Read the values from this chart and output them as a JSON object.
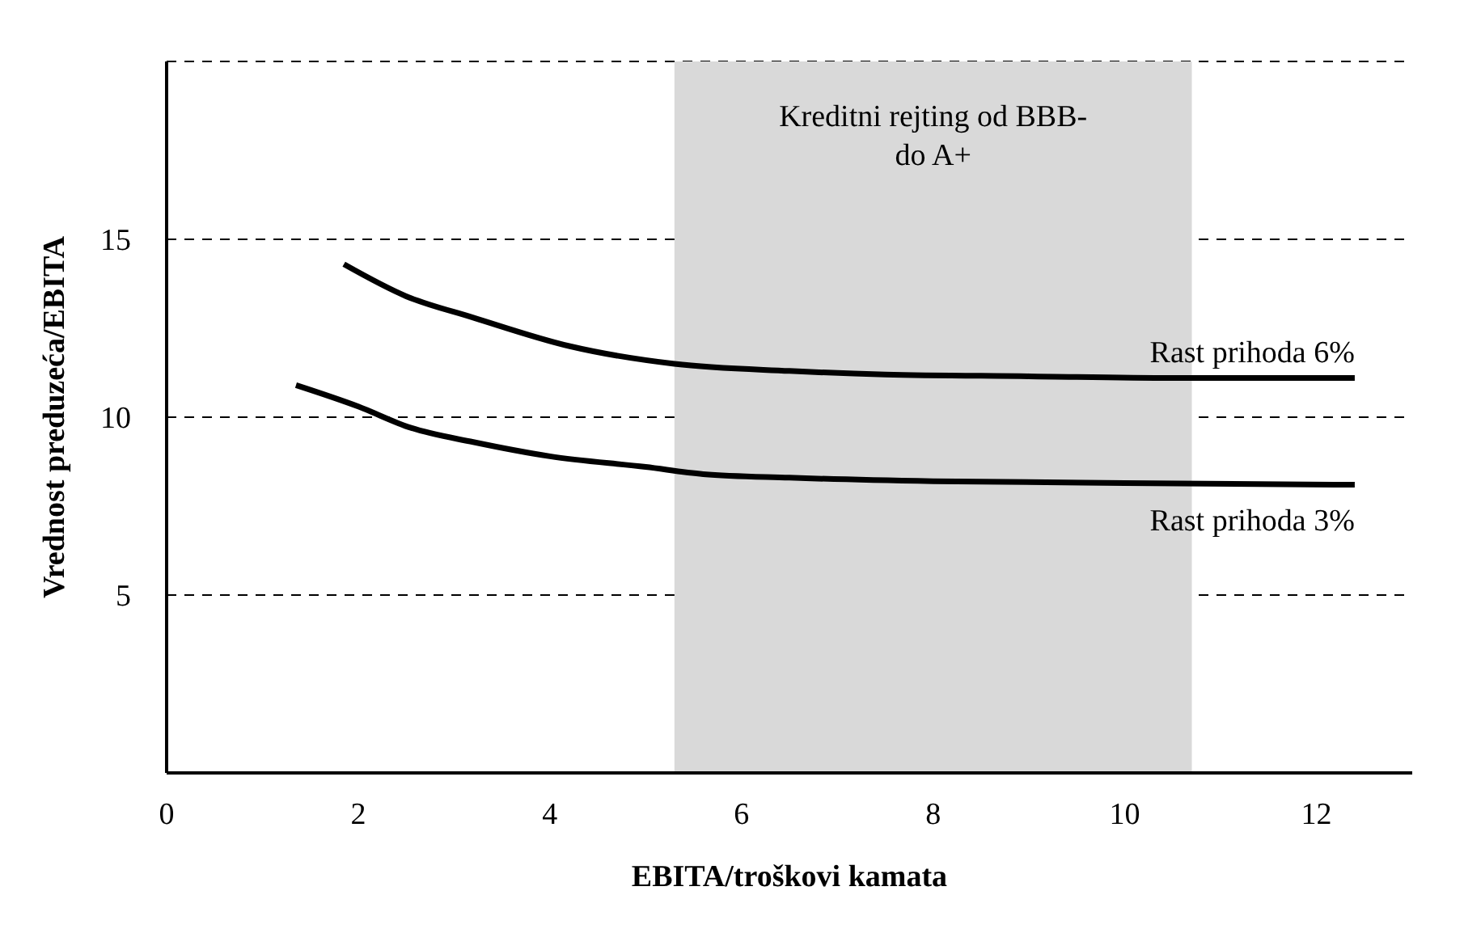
{
  "chart_data": {
    "type": "line",
    "xlabel": "EBITA/troškovi kamata",
    "ylabel": "Vrednost preduzeća/EBITA",
    "xlim": [
      0,
      13
    ],
    "xticks": [
      0,
      2,
      4,
      6,
      8,
      10,
      12
    ],
    "ylim": [
      0,
      20
    ],
    "yticks": [
      5,
      10,
      15
    ],
    "grid": "y",
    "line_style": "solid",
    "marker": "none",
    "legend": false,
    "bands": [
      {
        "axis": "x",
        "from": 5.3,
        "to": 10.7,
        "label": "Kreditni rejting od BBB- do A+",
        "color": "#d9d9d9"
      }
    ],
    "series": [
      {
        "name": "Rast prihoda 6%",
        "color": "#000000",
        "x": [
          1.85,
          2.5,
          3.2,
          4.2,
          5.3,
          6.5,
          7.5,
          9,
          10.5,
          12.4
        ],
        "values": [
          14.3,
          13.4,
          12.8,
          12.0,
          11.5,
          11.3,
          11.2,
          11.15,
          11.1,
          11.1
        ]
      },
      {
        "name": "Rast prihoda 3%",
        "color": "#000000",
        "x": [
          1.35,
          2,
          2.55,
          3.2,
          4,
          5,
          5.6,
          6.5,
          8,
          10,
          12.4
        ],
        "values": [
          10.9,
          10.3,
          9.7,
          9.3,
          8.9,
          8.6,
          8.4,
          8.3,
          8.2,
          8.15,
          8.1
        ]
      }
    ]
  }
}
